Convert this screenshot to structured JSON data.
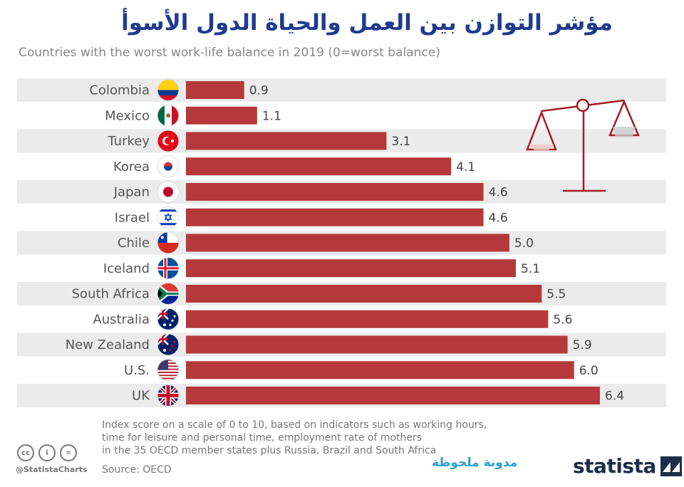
{
  "header": {
    "title_arabic": "مؤشر التوازن بين العمل والحياة الدول الأسوأ",
    "subtitle": "Countries with the worst work-life balance in 2019 (0=worst balance)"
  },
  "chart_data": {
    "type": "bar",
    "orientation": "horizontal",
    "title": "Countries with the worst work-life balance in 2019 (0=worst balance)",
    "categories": [
      "Colombia",
      "Mexico",
      "Turkey",
      "Korea",
      "Japan",
      "Israel",
      "Chile",
      "Iceland",
      "South Africa",
      "Australia",
      "New Zealand",
      "U.S.",
      "UK"
    ],
    "values": [
      0.9,
      1.1,
      3.1,
      4.1,
      4.6,
      4.6,
      5.0,
      5.1,
      5.5,
      5.6,
      5.9,
      6.0,
      6.4
    ],
    "value_labels": [
      "0.9",
      "1.1",
      "3.1",
      "4.1",
      "4.6",
      "4.6",
      "5.0",
      "5.1",
      "5.5",
      "5.6",
      "5.9",
      "6.0",
      "6.4"
    ],
    "flag_icons": [
      "colombia-flag-icon",
      "mexico-flag-icon",
      "turkey-flag-icon",
      "korea-flag-icon",
      "japan-flag-icon",
      "israel-flag-icon",
      "chile-flag-icon",
      "iceland-flag-icon",
      "south-africa-flag-icon",
      "australia-flag-icon",
      "new-zealand-flag-icon",
      "us-flag-icon",
      "uk-flag-icon"
    ],
    "xlim": [
      0,
      6.4
    ],
    "bar_color": "#b5393b",
    "stripe_color": "#ebebeb",
    "xlabel": "",
    "ylabel": ""
  },
  "footer": {
    "note_lines": [
      "Index score on a scale of 0 to 10, based on indicators such as working hours,",
      "time for leisure and personal time, employment rate of mothers",
      "in the 35 OECD member states plus Russia, Brazil and South Africa"
    ],
    "source": "Source: OECD",
    "handle": "@StatistaCharts",
    "cc_icons": [
      "cc",
      "i",
      "="
    ],
    "watermark": "مدونة ملحوظة",
    "logo": "statista"
  }
}
